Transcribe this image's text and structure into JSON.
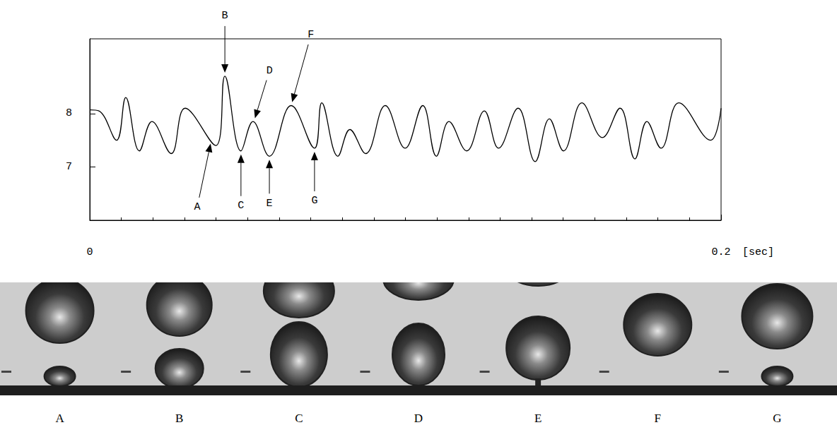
{
  "chart_data": {
    "type": "line",
    "x": [
      0,
      0.0029,
      0.0085,
      0.0114,
      0.0157,
      0.0197,
      0.0258,
      0.0302,
      0.0399,
      0.0428,
      0.0479,
      0.0517,
      0.0569,
      0.0638,
      0.0712,
      0.0735,
      0.0786,
      0.0824,
      0.0874,
      0.0936,
      0.0999,
      0.1055,
      0.1098,
      0.1138,
      0.1194,
      0.125,
      0.1295,
      0.1357,
      0.1411,
      0.1456,
      0.1501,
      0.1559,
      0.1624,
      0.168,
      0.1727,
      0.1765,
      0.181,
      0.1866,
      0.1967,
      0.2
    ],
    "values": [
      8.07,
      8.05,
      7.5,
      8.3,
      7.3,
      7.85,
      7.25,
      8.1,
      7.4,
      8.7,
      7.3,
      7.85,
      7.2,
      8.15,
      7.35,
      8.2,
      7.2,
      7.7,
      7.25,
      8.15,
      7.35,
      8.15,
      7.2,
      7.85,
      7.3,
      8.05,
      7.35,
      8.1,
      7.1,
      7.9,
      7.3,
      8.2,
      7.55,
      8.1,
      7.15,
      7.85,
      7.35,
      8.2,
      7.5,
      8.1
    ],
    "color": "#000000",
    "xlim": [
      0,
      0.2
    ],
    "xticks": [
      0,
      0.2
    ],
    "xlabel": "[sec]",
    "ylim": [
      6,
      9.4
    ],
    "yticks": [
      7,
      8
    ],
    "grid": false,
    "annotations": [
      {
        "text": "A",
        "x": 0.0385,
        "y": 7.5
      },
      {
        "text": "B",
        "x": 0.0428,
        "y": 8.7
      },
      {
        "text": "C",
        "x": 0.0479,
        "y": 7.3
      },
      {
        "text": "D",
        "x": 0.052,
        "y": 7.85
      },
      {
        "text": "E",
        "x": 0.0569,
        "y": 7.2
      },
      {
        "text": "F",
        "x": 0.0638,
        "y": 8.15
      },
      {
        "text": "G",
        "x": 0.0712,
        "y": 7.35
      }
    ]
  },
  "image_strip": {
    "labels": [
      "A",
      "B",
      "C",
      "D",
      "E",
      "F",
      "G"
    ]
  }
}
